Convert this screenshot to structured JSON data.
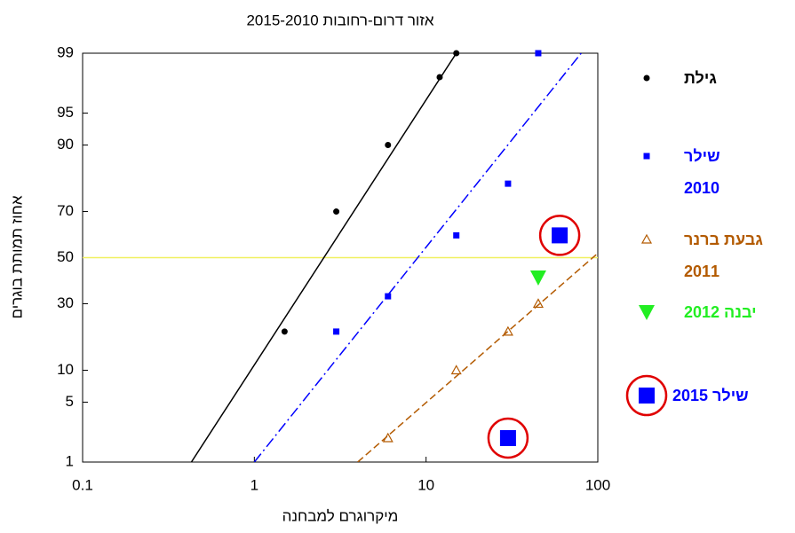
{
  "chart_data": {
    "type": "probability-scatter",
    "title": "אזור דרום-רחובות 2015-2010",
    "x_label": "מיקרוגרם למבחנה",
    "y_label": "אחוז תמותת בוגרים",
    "x_scale": "log",
    "y_scale": "probability",
    "xlim": [
      0.1,
      100
    ],
    "xticks": [
      0.1,
      1,
      10,
      100
    ],
    "ylim": [
      1,
      99
    ],
    "yticks": [
      1,
      5,
      10,
      30,
      50,
      70,
      90,
      95,
      99
    ],
    "legend": "right",
    "series": [
      {
        "name": "גילת",
        "color": "#000000",
        "marker": "circle",
        "x": [
          1.5,
          3,
          6,
          12,
          15
        ],
        "values": [
          20,
          70,
          90,
          98,
          99
        ]
      },
      {
        "name": "שילר 2010",
        "color": "#0000ff",
        "marker": "square",
        "x": [
          3,
          6,
          15,
          30,
          45
        ],
        "values": [
          20,
          33,
          60,
          80,
          99
        ]
      },
      {
        "name": "גבעת ברנר 2011",
        "color": "#b35a00",
        "marker": "triangle-open",
        "x": [
          6,
          15,
          30,
          45
        ],
        "values": [
          2,
          10,
          20,
          30
        ]
      },
      {
        "name": "יבנה 2012",
        "color": "#22ee22",
        "marker": "triangle-down",
        "x": [
          45
        ],
        "values": [
          41
        ]
      },
      {
        "name": "שילר 2015",
        "color": "#0000ff",
        "marker": "square-ringed",
        "ring_color": "#e00000",
        "x": [
          60,
          30
        ],
        "values": [
          60,
          2
        ]
      }
    ],
    "fit_lines": [
      {
        "color": "#000000",
        "style": "solid",
        "x": [
          0.43,
          15
        ],
        "values": [
          1,
          99
        ]
      },
      {
        "color": "#0000ff",
        "style": "dashdot",
        "x": [
          1,
          80
        ],
        "values": [
          1,
          99
        ]
      },
      {
        "color": "#b35a00",
        "style": "dashed",
        "x": [
          4,
          100
        ],
        "values": [
          1,
          52
        ]
      }
    ],
    "reference_line": {
      "value": 50,
      "color": "#f0f060"
    }
  }
}
